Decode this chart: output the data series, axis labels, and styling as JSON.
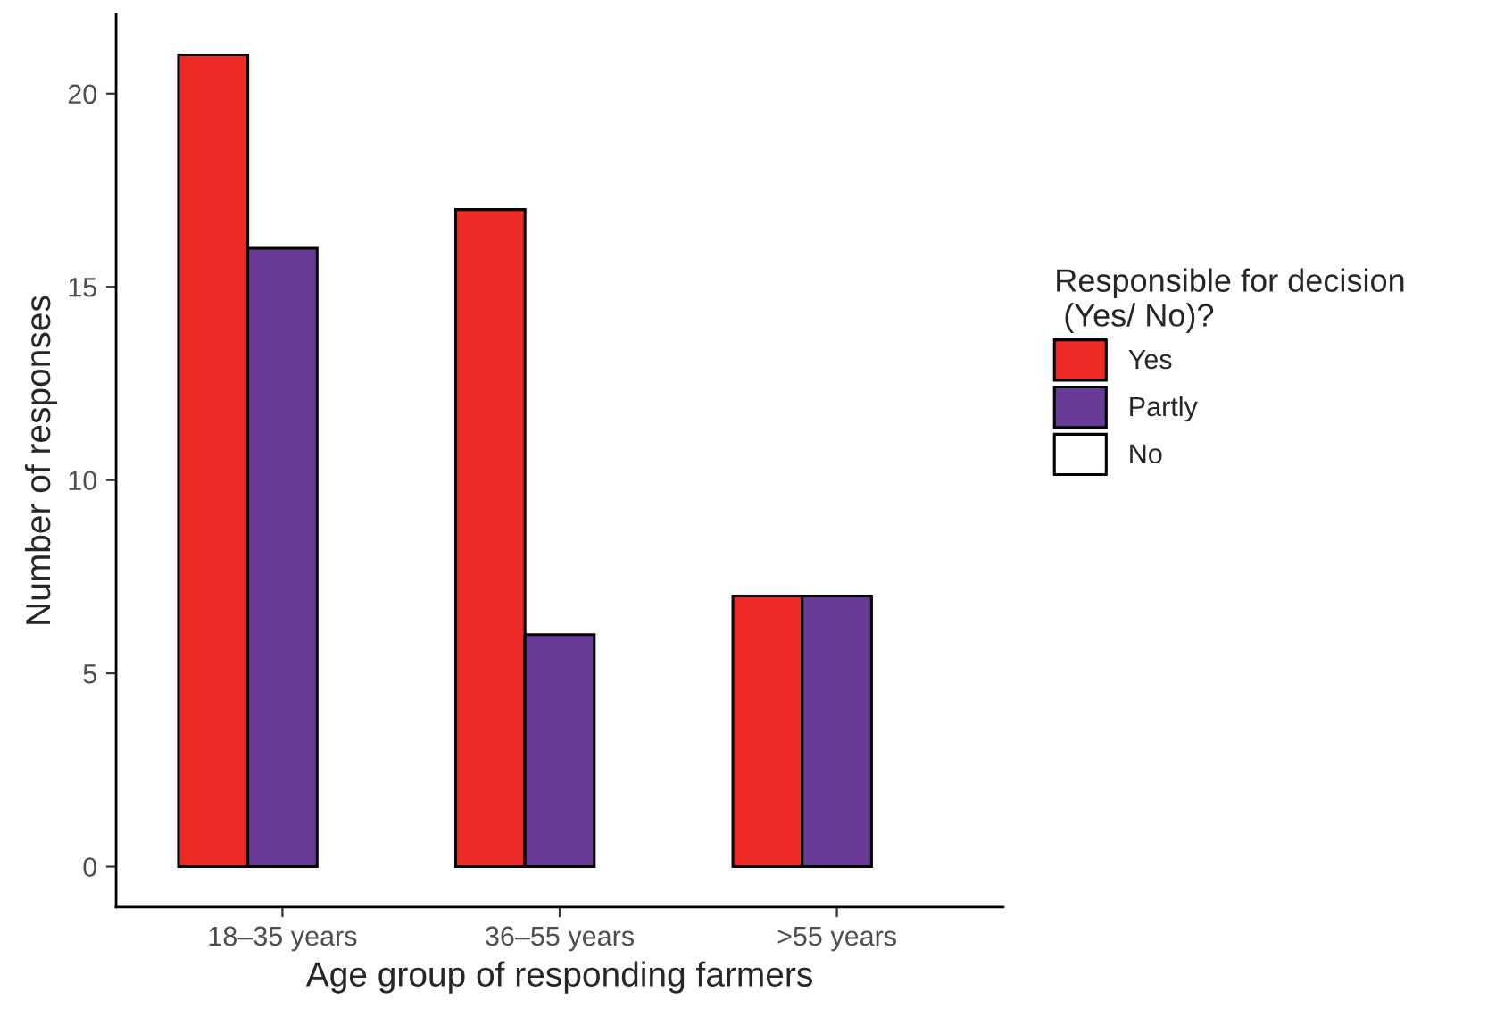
{
  "chart_data": {
    "type": "bar",
    "xlabel": "Age group of responding farmers",
    "ylabel": "Number of responses",
    "legend_title": "Responsible for decision\n (Yes/ No)?",
    "categories": [
      "18–35 years",
      "36–55 years",
      ">55 years"
    ],
    "series": [
      {
        "name": "Yes",
        "color": "#ee2a24",
        "values": [
          21,
          17,
          7
        ]
      },
      {
        "name": "Partly",
        "color": "#693a96",
        "values": [
          16,
          6,
          7
        ]
      },
      {
        "name": "No",
        "color": "#ffffff",
        "values": [
          0,
          0,
          0
        ]
      }
    ],
    "ylim": [
      -1.05,
      22.05
    ],
    "yticks": [
      0,
      5,
      10,
      15,
      20
    ],
    "grid": false,
    "legend": "right"
  }
}
